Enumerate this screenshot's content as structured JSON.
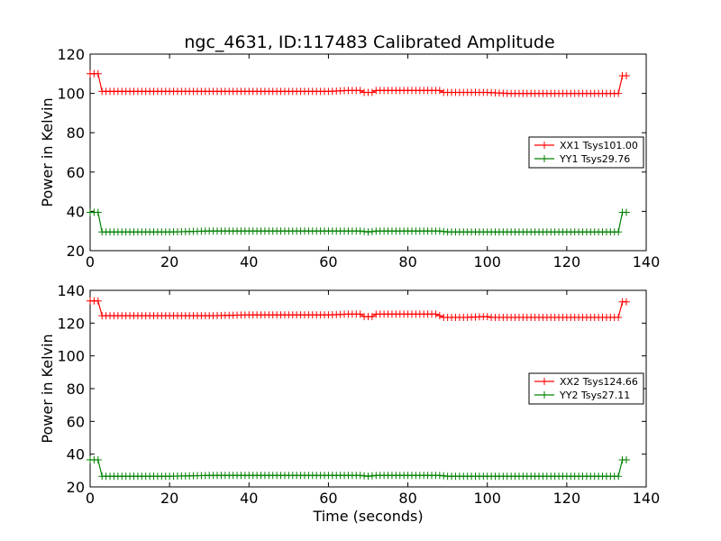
{
  "title": "ngc_4631, ID:117483 Calibrated Amplitude",
  "colors": {
    "XX": "#ff0000",
    "YY": "#008000"
  },
  "chart_data": [
    {
      "type": "line",
      "ylabel": "Power in Kelvin",
      "xlabel": "",
      "xlim": [
        0,
        140
      ],
      "ylim": [
        20,
        120
      ],
      "xticks": [
        0,
        20,
        40,
        60,
        80,
        100,
        120,
        140
      ],
      "yticks": [
        20,
        40,
        60,
        80,
        100,
        120
      ],
      "legend_position": "right",
      "series": [
        {
          "name": "XX1 Tsys101.00",
          "color": "#ff0000",
          "marker": "+",
          "points": [
            [
              0,
              110
            ],
            [
              1,
              110
            ],
            [
              2,
              110
            ],
            [
              3,
              101
            ],
            [
              5,
              101
            ],
            [
              10,
              101
            ],
            [
              15,
              101
            ],
            [
              20,
              101
            ],
            [
              25,
              101
            ],
            [
              30,
              101
            ],
            [
              35,
              101
            ],
            [
              40,
              101
            ],
            [
              45,
              101
            ],
            [
              50,
              101
            ],
            [
              55,
              101
            ],
            [
              60,
              101
            ],
            [
              65,
              101.5
            ],
            [
              68,
              101.5
            ],
            [
              69,
              100.5
            ],
            [
              71,
              100.5
            ],
            [
              72,
              101.5
            ],
            [
              75,
              101.5
            ],
            [
              80,
              101.5
            ],
            [
              85,
              101.5
            ],
            [
              88,
              101.5
            ],
            [
              89,
              100.5
            ],
            [
              95,
              100.5
            ],
            [
              100,
              100.5
            ],
            [
              105,
              100
            ],
            [
              110,
              100
            ],
            [
              115,
              100
            ],
            [
              120,
              100
            ],
            [
              125,
              100
            ],
            [
              130,
              100
            ],
            [
              133,
              100
            ],
            [
              134,
              109
            ],
            [
              135,
              109
            ]
          ]
        },
        {
          "name": "YY1 Tsys29.76",
          "color": "#008000",
          "marker": "+",
          "points": [
            [
              0,
              39.5
            ],
            [
              1,
              39.5
            ],
            [
              2,
              39.5
            ],
            [
              3,
              29.5
            ],
            [
              10,
              29.5
            ],
            [
              20,
              29.5
            ],
            [
              30,
              30
            ],
            [
              40,
              30
            ],
            [
              50,
              30
            ],
            [
              60,
              30
            ],
            [
              68,
              30
            ],
            [
              70,
              29.5
            ],
            [
              72,
              30
            ],
            [
              80,
              30
            ],
            [
              88,
              30
            ],
            [
              90,
              29.5
            ],
            [
              100,
              29.5
            ],
            [
              110,
              29.5
            ],
            [
              120,
              29.5
            ],
            [
              130,
              29.5
            ],
            [
              133,
              29.5
            ],
            [
              134,
              39.5
            ],
            [
              135,
              39.5
            ]
          ]
        }
      ]
    },
    {
      "type": "line",
      "ylabel": "Power in Kelvin",
      "xlabel": "Time (seconds)",
      "xlim": [
        0,
        140
      ],
      "ylim": [
        20,
        140
      ],
      "xticks": [
        0,
        20,
        40,
        60,
        80,
        100,
        120,
        140
      ],
      "yticks": [
        20,
        40,
        60,
        80,
        100,
        120,
        140
      ],
      "legend_position": "right",
      "series": [
        {
          "name": "XX2 Tsys124.66",
          "color": "#ff0000",
          "marker": "+",
          "points": [
            [
              0,
              133.5
            ],
            [
              1,
              133.5
            ],
            [
              2,
              133.5
            ],
            [
              3,
              124.5
            ],
            [
              10,
              124.5
            ],
            [
              20,
              124.5
            ],
            [
              30,
              124.5
            ],
            [
              40,
              125
            ],
            [
              50,
              125
            ],
            [
              60,
              125
            ],
            [
              65,
              125.5
            ],
            [
              68,
              125.5
            ],
            [
              69,
              124
            ],
            [
              71,
              124
            ],
            [
              72,
              125.5
            ],
            [
              80,
              125.5
            ],
            [
              87,
              125.5
            ],
            [
              89,
              123.5
            ],
            [
              95,
              123.5
            ],
            [
              100,
              124
            ],
            [
              101,
              123.5
            ],
            [
              110,
              123.5
            ],
            [
              120,
              123.5
            ],
            [
              130,
              123.5
            ],
            [
              133,
              123.5
            ],
            [
              134,
              133
            ],
            [
              135,
              133
            ]
          ]
        },
        {
          "name": "YY2 Tsys27.11",
          "color": "#008000",
          "marker": "+",
          "points": [
            [
              0,
              36.5
            ],
            [
              1,
              36.5
            ],
            [
              2,
              36.5
            ],
            [
              3,
              26.5
            ],
            [
              10,
              26.5
            ],
            [
              20,
              26.5
            ],
            [
              30,
              27
            ],
            [
              40,
              27
            ],
            [
              50,
              27
            ],
            [
              60,
              27
            ],
            [
              68,
              27
            ],
            [
              70,
              26.5
            ],
            [
              72,
              27
            ],
            [
              80,
              27
            ],
            [
              88,
              27
            ],
            [
              90,
              26.5
            ],
            [
              100,
              26.5
            ],
            [
              110,
              26.5
            ],
            [
              120,
              26.5
            ],
            [
              130,
              26.5
            ],
            [
              133,
              26.5
            ],
            [
              134,
              36.5
            ],
            [
              135,
              36.5
            ]
          ]
        }
      ]
    }
  ]
}
